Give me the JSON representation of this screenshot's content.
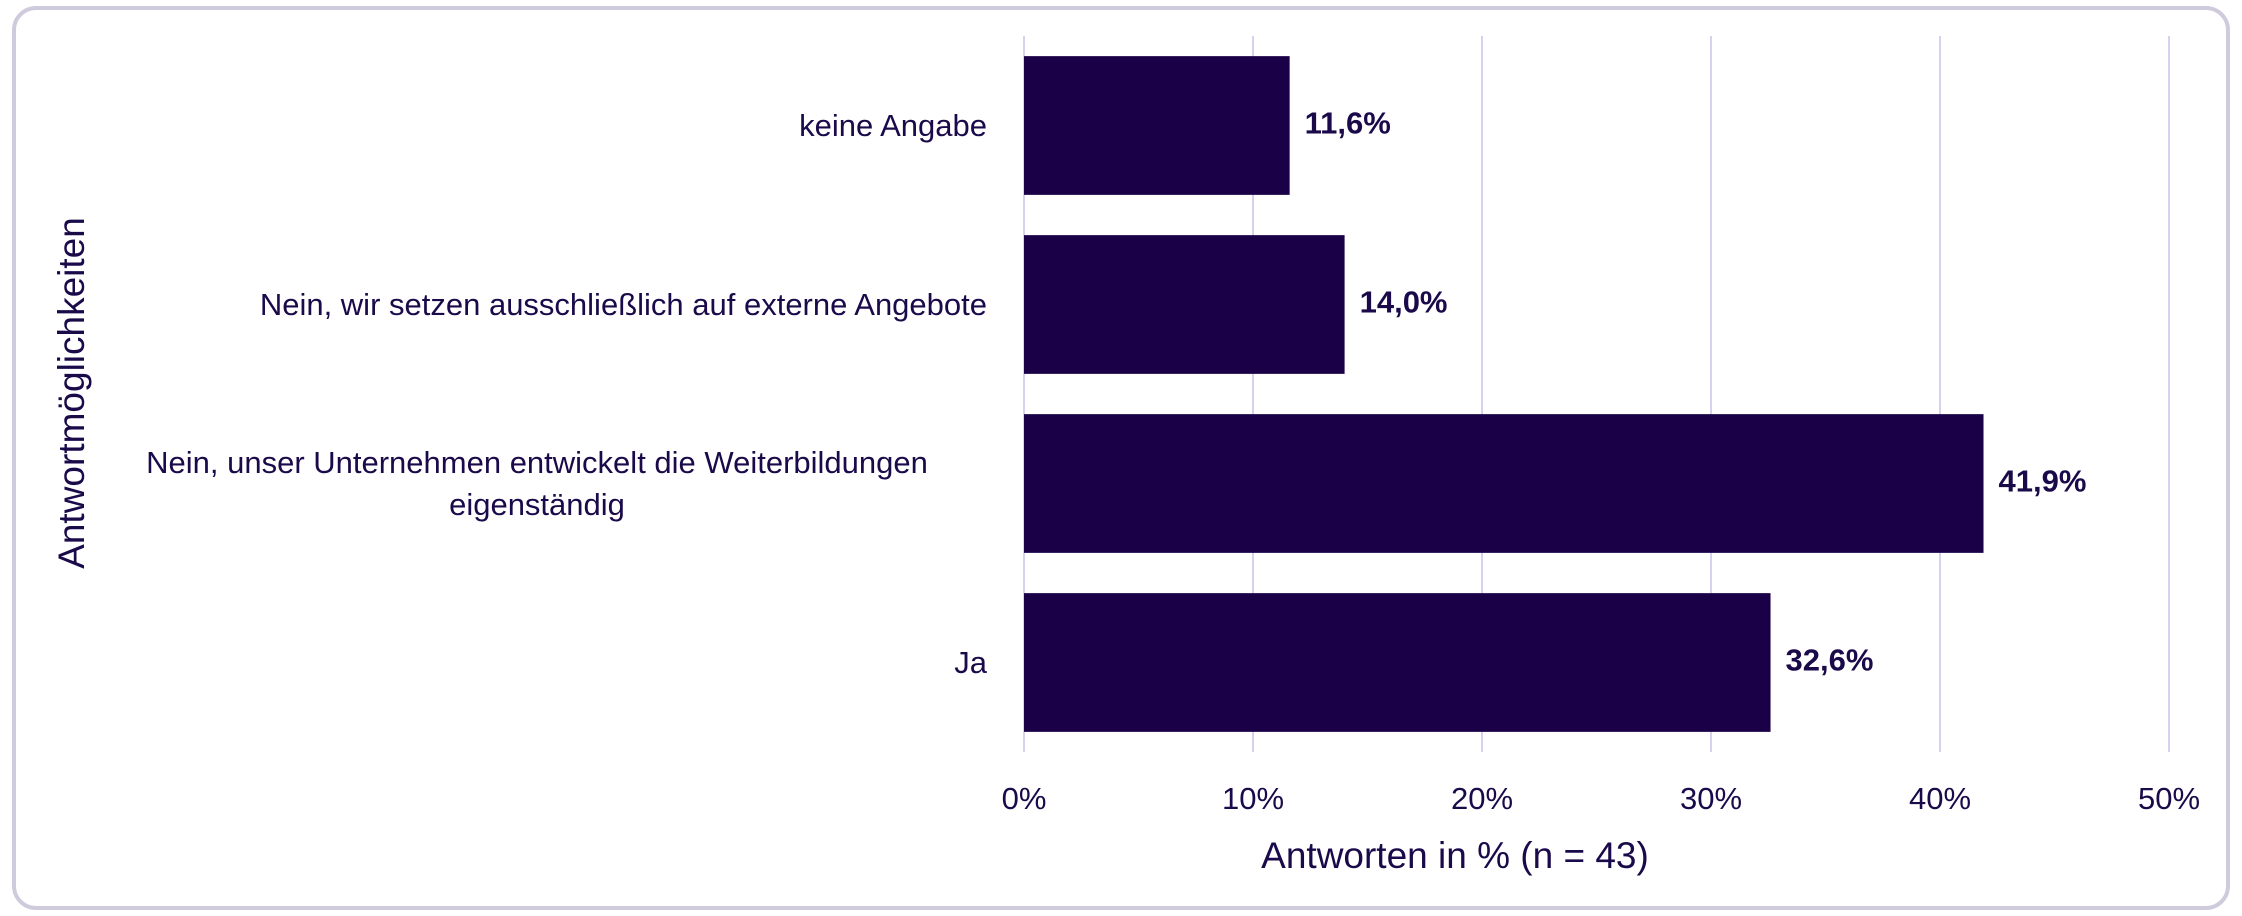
{
  "chart_data": {
    "type": "bar",
    "orientation": "horizontal",
    "categories": [
      "keine Angabe",
      "Nein, wir setzen ausschließlich auf externe Angebote",
      "Nein, unser Unternehmen entwickelt die Weiterbildungen eigenständig",
      "Ja"
    ],
    "values": [
      11.6,
      14.0,
      41.9,
      32.6
    ],
    "value_labels": [
      "11,6%",
      "14,0%",
      "41,9%",
      "32,6%"
    ],
    "color": "#1a0046",
    "xlim": [
      0,
      50
    ],
    "xticks": [
      {
        "value": 0,
        "label": "0%"
      },
      {
        "value": 10,
        "label": "10%"
      },
      {
        "value": 20,
        "label": "20%"
      },
      {
        "value": 30,
        "label": "30%"
      },
      {
        "value": 40,
        "label": "40%"
      },
      {
        "value": 50,
        "label": "50%"
      }
    ],
    "x_label": "Antworten in % (n = 43)",
    "y_label": "Antwortmöglichkeiten",
    "grid": true
  }
}
